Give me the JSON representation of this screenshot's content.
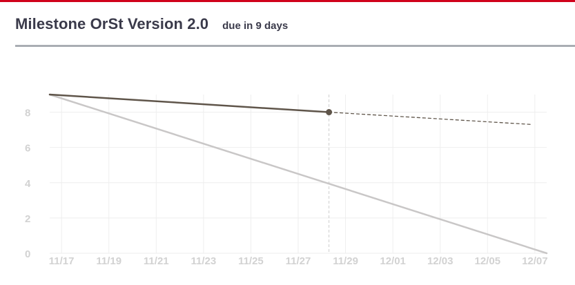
{
  "header": {
    "title": "Milestone OrSt Version 2.0",
    "due": "due in 9 days"
  },
  "colors": {
    "accent_bar": "#d0021b",
    "actual_line": "#5f554a",
    "ideal_line": "#c9c7c7",
    "grid": "#eeeeee",
    "tick_label": "#d2d2d2"
  },
  "chart_data": {
    "type": "line",
    "title": "Milestone OrSt Version 2.0",
    "xlabel": "",
    "ylabel": "",
    "ylim": [
      0,
      9
    ],
    "xlim": [
      0,
      21
    ],
    "grid": true,
    "x_tick_labels": [
      {
        "x": 0.5,
        "label": "11/17"
      },
      {
        "x": 2.5,
        "label": "11/19"
      },
      {
        "x": 4.5,
        "label": "11/21"
      },
      {
        "x": 6.5,
        "label": "11/23"
      },
      {
        "x": 8.5,
        "label": "11/25"
      },
      {
        "x": 10.5,
        "label": "11/27"
      },
      {
        "x": 12.5,
        "label": "11/29"
      },
      {
        "x": 14.5,
        "label": "12/01"
      },
      {
        "x": 16.5,
        "label": "12/03"
      },
      {
        "x": 18.5,
        "label": "12/05"
      },
      {
        "x": 20.5,
        "label": "12/07"
      }
    ],
    "y_ticks": [
      0,
      2,
      4,
      6,
      8
    ],
    "today_x": 11.8,
    "series": [
      {
        "name": "ideal",
        "style": "solid",
        "points": [
          {
            "x": 0,
            "y": 9
          },
          {
            "x": 21,
            "y": 0
          }
        ]
      },
      {
        "name": "actual",
        "style": "solid",
        "points": [
          {
            "x": 0,
            "y": 9
          },
          {
            "x": 11.8,
            "y": 8
          }
        ]
      },
      {
        "name": "projected",
        "style": "dashed",
        "points": [
          {
            "x": 11.8,
            "y": 8
          },
          {
            "x": 20.4,
            "y": 7.3
          }
        ]
      }
    ]
  }
}
